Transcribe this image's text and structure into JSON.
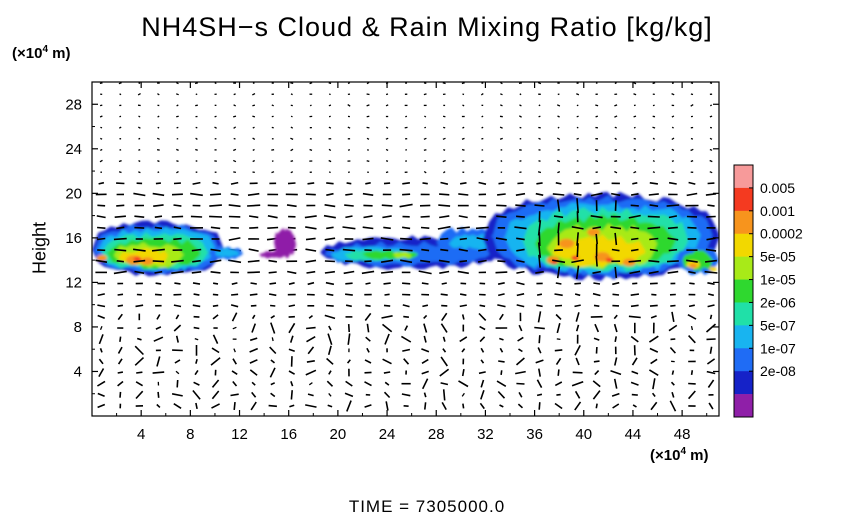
{
  "chart_data": {
    "type": "heatmap",
    "title": "NH4SH−s Cloud & Rain Mixing Ratio [kg/kg]",
    "xlabel": "",
    "ylabel": "Height",
    "x_unit_prefix": "(×10",
    "x_unit_exp": "4",
    "x_unit_suffix": " m)",
    "y_unit_prefix": "(×10",
    "y_unit_exp": "4",
    "y_unit_suffix": " m)",
    "xlim": [
      0,
      51
    ],
    "ylim": [
      0,
      30
    ],
    "x_ticks": [
      "4",
      "8",
      "12",
      "16",
      "20",
      "24",
      "28",
      "32",
      "36",
      "40",
      "44",
      "48"
    ],
    "y_ticks": [
      "4",
      "8",
      "12",
      "16",
      "20",
      "24",
      "28"
    ],
    "colorbar": {
      "labels": [
        "0.005",
        "0.001",
        "0.0002",
        "5e-05",
        "1e-05",
        "2e-06",
        "5e-07",
        "1e-07",
        "2e-08"
      ],
      "colors": [
        "#f79a9a",
        "#f43a20",
        "#f7941d",
        "#f2d800",
        "#a8ea18",
        "#2fd82f",
        "#20e0a8",
        "#18b4f0",
        "#1f6cf5",
        "#1522c8",
        "#8f1fa8"
      ]
    },
    "regions": [
      {
        "name": "cloud-west",
        "x": [
          0,
          11
        ],
        "y": [
          12.8,
          17.3
        ],
        "peak": "0.0002"
      },
      {
        "name": "cloud-streak",
        "x": [
          11,
          16.5
        ],
        "y": [
          14.2,
          15.0
        ],
        "peak": "2e-08"
      },
      {
        "name": "cloud-central",
        "x": [
          18.5,
          33
        ],
        "y": [
          13.3,
          16.8
        ],
        "peak": "5e-05"
      },
      {
        "name": "cloud-east",
        "x": [
          32,
          51
        ],
        "y": [
          12.5,
          19.8
        ],
        "peak": "0.0002"
      }
    ],
    "vectors": "wind vectors on regular grid"
  },
  "time_label": "TIME  =  7305000.0"
}
